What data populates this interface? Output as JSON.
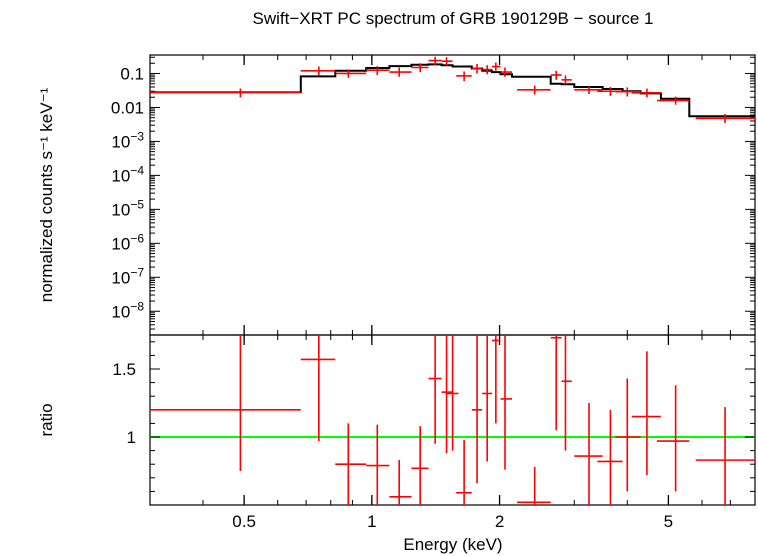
{
  "chart_data": {
    "type": "scatter",
    "title": "Swift−XRT PC spectrum of GRB 190129B − source 1",
    "xlabel": "Energy (keV)",
    "x_scale": "log",
    "xlim": [
      0.3,
      8.0
    ],
    "x_ticks": [
      {
        "value": 0.5,
        "label": "0.5"
      },
      {
        "value": 1,
        "label": "1"
      },
      {
        "value": 2,
        "label": "2"
      },
      {
        "value": 5,
        "label": "5"
      }
    ],
    "colors": {
      "data": "#ff0000",
      "model": "#000000",
      "unity": "#00ff00"
    },
    "panels": [
      {
        "name": "spectrum",
        "ylabel": "normalized counts s⁻¹ keV⁻¹",
        "y_scale": "log",
        "ylim": [
          2e-09,
          0.35
        ],
        "y_ticks": [
          {
            "value": 0.1,
            "label": "0.1"
          },
          {
            "value": 0.01,
            "label": "0.01"
          },
          {
            "value": 0.001,
            "base": "10",
            "exp": "−3"
          },
          {
            "value": 0.0001,
            "base": "10",
            "exp": "−4"
          },
          {
            "value": 1e-05,
            "base": "10",
            "exp": "−5"
          },
          {
            "value": 1e-06,
            "base": "10",
            "exp": "−6"
          },
          {
            "value": 1e-07,
            "base": "10",
            "exp": "−7"
          },
          {
            "value": 1e-08,
            "base": "10",
            "exp": "−8"
          }
        ],
        "series": [
          {
            "kind": "data_with_errors",
            "points": [
              {
                "x": 0.49,
                "xlo": 0.3,
                "xhi": 0.68,
                "y": 0.028,
                "ylo": 0.02,
                "yhi": 0.036
              },
              {
                "x": 0.75,
                "xlo": 0.68,
                "xhi": 0.82,
                "y": 0.12,
                "ylo": 0.085,
                "yhi": 0.16
              },
              {
                "x": 0.88,
                "xlo": 0.82,
                "xhi": 0.97,
                "y": 0.1,
                "ylo": 0.075,
                "yhi": 0.13
              },
              {
                "x": 1.03,
                "xlo": 0.97,
                "xhi": 1.1,
                "y": 0.125,
                "ylo": 0.09,
                "yhi": 0.165
              },
              {
                "x": 1.16,
                "xlo": 1.1,
                "xhi": 1.24,
                "y": 0.11,
                "ylo": 0.08,
                "yhi": 0.15
              },
              {
                "x": 1.3,
                "xlo": 1.24,
                "xhi": 1.36,
                "y": 0.15,
                "ylo": 0.11,
                "yhi": 0.2
              },
              {
                "x": 1.41,
                "xlo": 1.36,
                "xhi": 1.46,
                "y": 0.24,
                "ylo": 0.17,
                "yhi": 0.31
              },
              {
                "x": 1.5,
                "xlo": 1.46,
                "xhi": 1.55,
                "y": 0.23,
                "ylo": 0.17,
                "yhi": 0.3
              },
              {
                "x": 1.65,
                "xlo": 1.58,
                "xhi": 1.72,
                "y": 0.085,
                "ylo": 0.06,
                "yhi": 0.115
              },
              {
                "x": 1.77,
                "xlo": 1.72,
                "xhi": 1.82,
                "y": 0.14,
                "ylo": 0.1,
                "yhi": 0.19
              },
              {
                "x": 1.87,
                "xlo": 1.82,
                "xhi": 1.92,
                "y": 0.13,
                "ylo": 0.095,
                "yhi": 0.175
              },
              {
                "x": 1.96,
                "xlo": 1.92,
                "xhi": 2.01,
                "y": 0.16,
                "ylo": 0.12,
                "yhi": 0.21
              },
              {
                "x": 2.06,
                "xlo": 2.01,
                "xhi": 2.14,
                "y": 0.11,
                "ylo": 0.08,
                "yhi": 0.15
              },
              {
                "x": 2.42,
                "xlo": 2.2,
                "xhi": 2.64,
                "y": 0.033,
                "ylo": 0.024,
                "yhi": 0.044
              },
              {
                "x": 2.72,
                "xlo": 2.64,
                "xhi": 2.8,
                "y": 0.09,
                "ylo": 0.065,
                "yhi": 0.12
              },
              {
                "x": 2.86,
                "xlo": 2.8,
                "xhi": 2.96,
                "y": 0.065,
                "ylo": 0.048,
                "yhi": 0.088
              },
              {
                "x": 3.25,
                "xlo": 3.0,
                "xhi": 3.5,
                "y": 0.033,
                "ylo": 0.025,
                "yhi": 0.043
              },
              {
                "x": 3.65,
                "xlo": 3.4,
                "xhi": 3.9,
                "y": 0.03,
                "ylo": 0.022,
                "yhi": 0.04
              },
              {
                "x": 4.0,
                "xlo": 3.75,
                "xhi": 4.3,
                "y": 0.029,
                "ylo": 0.021,
                "yhi": 0.039
              },
              {
                "x": 4.45,
                "xlo": 4.1,
                "xhi": 4.8,
                "y": 0.027,
                "ylo": 0.02,
                "yhi": 0.036
              },
              {
                "x": 5.2,
                "xlo": 4.7,
                "xhi": 5.6,
                "y": 0.016,
                "ylo": 0.012,
                "yhi": 0.021
              },
              {
                "x": 6.8,
                "xlo": 5.8,
                "xhi": 8.0,
                "y": 0.0048,
                "ylo": 0.0035,
                "yhi": 0.0064
              }
            ]
          },
          {
            "kind": "model_step",
            "edges": [
              0.3,
              0.68,
              0.82,
              0.97,
              1.1,
              1.24,
              1.36,
              1.46,
              1.55,
              1.72,
              1.82,
              1.92,
              2.01,
              2.14,
              2.64,
              2.8,
              3.0,
              3.5,
              3.9,
              4.3,
              4.8,
              5.6,
              8.0
            ],
            "values": [
              0.028,
              0.082,
              0.12,
              0.145,
              0.165,
              0.18,
              0.185,
              0.175,
              0.16,
              0.14,
              0.12,
              0.11,
              0.095,
              0.08,
              0.05,
              0.048,
              0.04,
              0.035,
              0.03,
              0.026,
              0.018,
              0.0055
            ]
          }
        ]
      },
      {
        "name": "ratio",
        "ylabel": "ratio",
        "y_scale": "linear",
        "ylim": [
          0.5,
          1.75
        ],
        "y_ticks": [
          {
            "value": 1,
            "label": "1"
          },
          {
            "value": 1.5,
            "label": "1.5"
          }
        ],
        "reference_line": 1.0,
        "series": [
          {
            "kind": "data_with_errors",
            "points": [
              {
                "x": 0.49,
                "xlo": 0.3,
                "xhi": 0.68,
                "y": 1.2,
                "ylo": 0.75,
                "yhi": 1.75
              },
              {
                "x": 0.75,
                "xlo": 0.68,
                "xhi": 0.82,
                "y": 1.57,
                "ylo": 0.97,
                "yhi": 1.75
              },
              {
                "x": 0.88,
                "xlo": 0.82,
                "xhi": 0.97,
                "y": 0.8,
                "ylo": 0.5,
                "yhi": 1.1
              },
              {
                "x": 1.03,
                "xlo": 0.97,
                "xhi": 1.1,
                "y": 0.79,
                "ylo": 0.5,
                "yhi": 1.09
              },
              {
                "x": 1.16,
                "xlo": 1.1,
                "xhi": 1.24,
                "y": 0.56,
                "ylo": 0.5,
                "yhi": 0.83
              },
              {
                "x": 1.3,
                "xlo": 1.24,
                "xhi": 1.36,
                "y": 0.77,
                "ylo": 0.5,
                "yhi": 1.08
              },
              {
                "x": 1.41,
                "xlo": 1.36,
                "xhi": 1.46,
                "y": 1.43,
                "ylo": 0.95,
                "yhi": 1.75
              },
              {
                "x": 1.5,
                "xlo": 1.46,
                "xhi": 1.55,
                "y": 1.33,
                "ylo": 0.88,
                "yhi": 1.75
              },
              {
                "x": 1.55,
                "xlo": 1.5,
                "xhi": 1.6,
                "y": 1.32,
                "ylo": 0.9,
                "yhi": 1.75
              },
              {
                "x": 1.65,
                "xlo": 1.58,
                "xhi": 1.72,
                "y": 0.59,
                "ylo": 0.5,
                "yhi": 0.98
              },
              {
                "x": 1.77,
                "xlo": 1.72,
                "xhi": 1.82,
                "y": 1.2,
                "ylo": 0.66,
                "yhi": 1.75
              },
              {
                "x": 1.87,
                "xlo": 1.82,
                "xhi": 1.92,
                "y": 1.32,
                "ylo": 0.82,
                "yhi": 1.75
              },
              {
                "x": 1.96,
                "xlo": 1.92,
                "xhi": 2.01,
                "y": 1.71,
                "ylo": 1.1,
                "yhi": 1.75
              },
              {
                "x": 2.06,
                "xlo": 2.01,
                "xhi": 2.14,
                "y": 1.28,
                "ylo": 0.76,
                "yhi": 1.75
              },
              {
                "x": 2.42,
                "xlo": 2.2,
                "xhi": 2.64,
                "y": 0.52,
                "ylo": 0.5,
                "yhi": 0.78
              },
              {
                "x": 2.72,
                "xlo": 2.64,
                "xhi": 2.8,
                "y": 1.73,
                "ylo": 1.05,
                "yhi": 1.75
              },
              {
                "x": 2.86,
                "xlo": 2.8,
                "xhi": 2.96,
                "y": 1.41,
                "ylo": 0.9,
                "yhi": 1.75
              },
              {
                "x": 3.25,
                "xlo": 3.0,
                "xhi": 3.5,
                "y": 0.86,
                "ylo": 0.5,
                "yhi": 1.25
              },
              {
                "x": 3.65,
                "xlo": 3.4,
                "xhi": 3.9,
                "y": 0.82,
                "ylo": 0.5,
                "yhi": 1.2
              },
              {
                "x": 4.0,
                "xlo": 3.75,
                "xhi": 4.3,
                "y": 1.0,
                "ylo": 0.6,
                "yhi": 1.43
              },
              {
                "x": 4.45,
                "xlo": 4.1,
                "xhi": 4.8,
                "y": 1.15,
                "ylo": 0.72,
                "yhi": 1.63
              },
              {
                "x": 5.2,
                "xlo": 4.7,
                "xhi": 5.6,
                "y": 0.97,
                "ylo": 0.6,
                "yhi": 1.38
              },
              {
                "x": 6.8,
                "xlo": 5.8,
                "xhi": 8.0,
                "y": 0.83,
                "ylo": 0.5,
                "yhi": 1.22
              }
            ]
          }
        ]
      }
    ]
  }
}
